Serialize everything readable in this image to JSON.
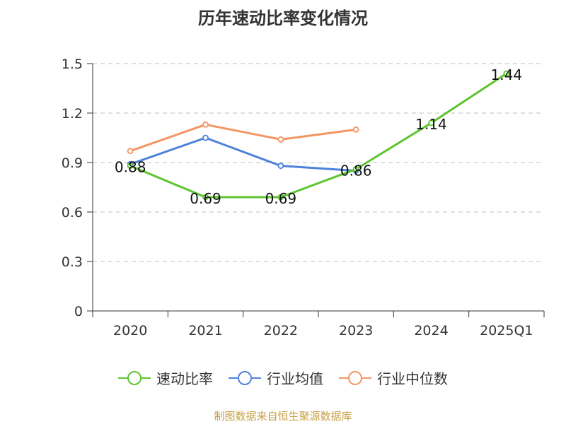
{
  "chart_data": {
    "type": "line",
    "title": "历年速动比率变化情况",
    "categories": [
      "2020",
      "2021",
      "2022",
      "2023",
      "2024",
      "2025Q1"
    ],
    "ylim": [
      0,
      1.5
    ],
    "yticks": [
      "0",
      "0.3",
      "0.6",
      "0.9",
      "1.2",
      "1.5"
    ],
    "grid": true,
    "legend_position": "bottom",
    "series": [
      {
        "name": "速动比率",
        "color": "#5ec42f",
        "values": [
          0.88,
          0.69,
          0.69,
          0.86,
          1.14,
          1.44
        ],
        "labels": [
          "0.88",
          "0.69",
          "0.69",
          "0.86",
          "1.14",
          "1.44"
        ]
      },
      {
        "name": "行业均值",
        "color": "#4f82dc",
        "values": [
          0.89,
          1.05,
          0.88,
          0.85,
          null,
          null
        ]
      },
      {
        "name": "行业中位数",
        "color": "#f59563",
        "values": [
          0.97,
          1.13,
          1.04,
          1.1,
          null,
          null
        ]
      }
    ],
    "source": "制图数据来自恒生聚源数据库"
  }
}
